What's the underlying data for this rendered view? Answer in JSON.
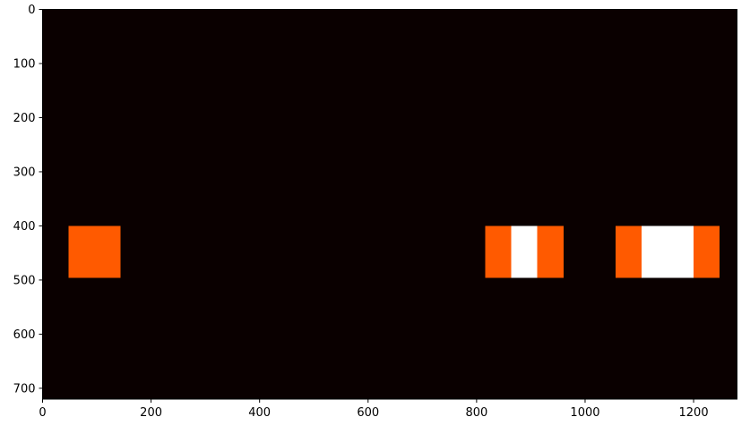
{
  "chart_data": {
    "type": "heatmap",
    "title": "",
    "xlabel": "",
    "ylabel": "",
    "xlim": [
      0,
      1280
    ],
    "ylim": [
      720,
      0
    ],
    "y_axis_inverted": true,
    "grid": false,
    "colormap": "hot",
    "background_color": "#0a0000",
    "x_ticks": [
      0,
      200,
      400,
      600,
      800,
      1000,
      1200
    ],
    "y_ticks": [
      0,
      100,
      200,
      300,
      400,
      500,
      600,
      700
    ],
    "cells": [
      {
        "x0": 48,
        "x1": 144,
        "y0": 400,
        "y1": 496,
        "level": "medium",
        "color": "#ff5a00"
      },
      {
        "x0": 816,
        "x1": 864,
        "y0": 400,
        "y1": 496,
        "level": "medium",
        "color": "#ff5a00"
      },
      {
        "x0": 864,
        "x1": 912,
        "y0": 400,
        "y1": 496,
        "level": "high",
        "color": "#ffffff"
      },
      {
        "x0": 912,
        "x1": 960,
        "y0": 400,
        "y1": 496,
        "level": "medium",
        "color": "#ff5a00"
      },
      {
        "x0": 1056,
        "x1": 1104,
        "y0": 400,
        "y1": 496,
        "level": "medium",
        "color": "#ff5a00"
      },
      {
        "x0": 1104,
        "x1": 1200,
        "y0": 400,
        "y1": 496,
        "level": "high",
        "color": "#ffffff"
      },
      {
        "x0": 1200,
        "x1": 1248,
        "y0": 400,
        "y1": 496,
        "level": "medium",
        "color": "#ff5a00"
      }
    ]
  }
}
